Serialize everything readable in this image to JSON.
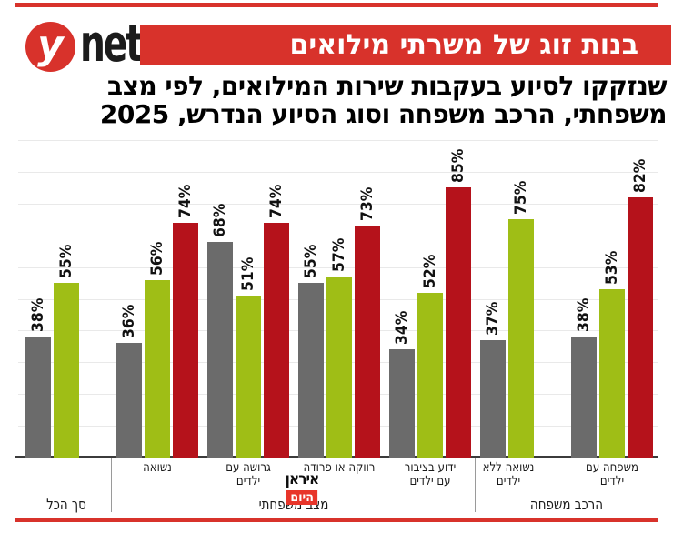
{
  "header": {
    "logo_y": "y",
    "logo_net": "net",
    "banner_title": "בנות זוג של משרתי מילואים",
    "subtitle_line1": "שנזקקו לסיוע בעקבות שירות המילואים, לפי מצב",
    "subtitle_line2": "משפחתי, הרכב משפחה וסוג הסיוע הנדרש, 2025"
  },
  "watermark": {
    "line1": "איראן",
    "line2": "היום"
  },
  "colors": {
    "brand_red": "#d8322b",
    "bar_gray": "#6b6b6b",
    "bar_green": "#9fbe16",
    "bar_red": "#b5121b",
    "gridline": "#e9e9e9"
  },
  "chart_data": {
    "type": "bar",
    "title": "בנות זוג של משרתי מילואים",
    "subtitle": "שנזקקו לסיוע בעקבות שירות המילואים, לפי מצב משפחתי, הרכב משפחה וסוג הסיוע הנדרש, 2025",
    "unit": "%",
    "ylim": [
      0,
      100
    ],
    "gridline_step": 10,
    "legend": "none",
    "value_labels": "rotated-90-above-bars",
    "categories": [
      "סך הכל",
      "נשואה",
      "גרושה עם ילדים",
      "רווקה או פרודה",
      "ידוע בציבור עם ילדים",
      "נשואה ללא ילדים",
      "משפחה עם ילדים"
    ],
    "category_label_lines": [
      "",
      "נשואה",
      "גרושה עם\nילדים",
      "רווקה או פרודה",
      "ידוע בציבור\nעם ילדים",
      "נשואה ללא\nילדים",
      "משפחה עם\nילדים"
    ],
    "series": [
      {
        "name": "gray",
        "color": "#6b6b6b",
        "values": [
          38,
          36,
          68,
          55,
          34,
          37,
          38
        ]
      },
      {
        "name": "green",
        "color": "#9fbe16",
        "values": [
          55,
          56,
          51,
          57,
          52,
          75,
          53
        ]
      },
      {
        "name": "red",
        "color": "#b5121b",
        "values": [
          null,
          74,
          74,
          73,
          85,
          null,
          82
        ]
      }
    ],
    "sections": [
      {
        "label": "סך הכל",
        "from": 0,
        "to": 0
      },
      {
        "label": "מצב משפחתי",
        "from": 1,
        "to": 4
      },
      {
        "label": "הרכב משפחה",
        "from": 5,
        "to": 6
      }
    ]
  }
}
